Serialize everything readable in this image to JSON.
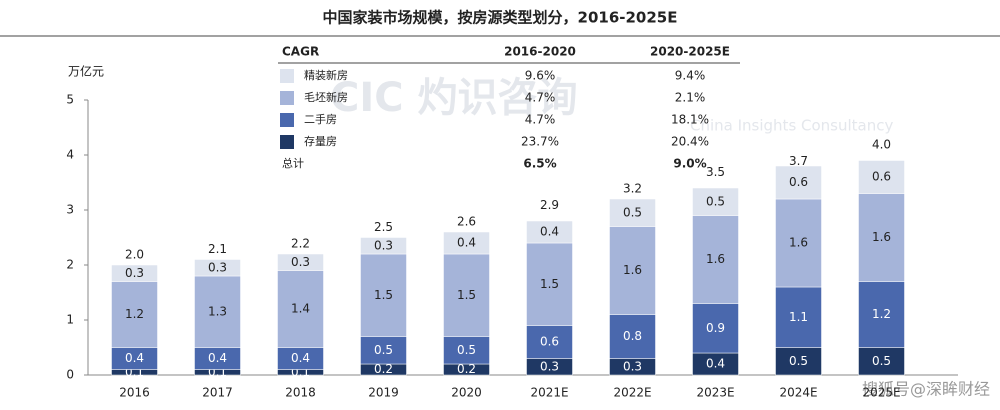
{
  "chart_data": {
    "type": "stacked_bar",
    "title": "中国家装市场规模，按房源类型划分，2016-2025E",
    "y_unit": "万亿元",
    "categories": [
      "2016",
      "2017",
      "2018",
      "2019",
      "2020",
      "2021E",
      "2022E",
      "2023E",
      "2024E",
      "2025E"
    ],
    "series": [
      {
        "name": "精装新房",
        "color": "#dde3ee",
        "values": [
          0.3,
          0.3,
          0.3,
          0.3,
          0.4,
          0.4,
          0.5,
          0.5,
          0.6,
          0.6
        ]
      },
      {
        "name": "毛坯新房",
        "color": "#a5b4d9",
        "values": [
          1.2,
          1.3,
          1.4,
          1.5,
          1.5,
          1.5,
          1.6,
          1.6,
          1.6,
          1.6
        ]
      },
      {
        "name": "二手房",
        "color": "#4a68ad",
        "values": [
          0.4,
          0.4,
          0.4,
          0.5,
          0.5,
          0.6,
          0.8,
          0.9,
          1.1,
          1.2
        ]
      },
      {
        "name": "存量房",
        "color": "#1f3864",
        "values": [
          0.1,
          0.1,
          0.1,
          0.2,
          0.2,
          0.3,
          0.3,
          0.4,
          0.5,
          0.5
        ]
      }
    ],
    "totals": {
      "values": [
        2.0,
        2.1,
        2.2,
        2.5,
        2.6,
        2.9,
        3.2,
        3.5,
        3.7,
        4.0
      ],
      "value_labels": [
        "2.0",
        "2.1",
        "2.2",
        "2.5",
        "2.6",
        "2.9",
        "3.2",
        "3.5",
        "3.7",
        "4.0"
      ]
    },
    "ylim": [
      0,
      5
    ],
    "yticks": [
      0,
      1,
      2,
      3,
      4,
      5
    ],
    "grid": false,
    "cagr_table": {
      "headers": [
        "CAGR",
        "2016-2020",
        "2020-2025E"
      ],
      "rows": [
        [
          "9.6%",
          "9.4%"
        ],
        [
          "4.7%",
          "2.1%"
        ],
        [
          "4.7%",
          "18.1%"
        ],
        [
          "23.7%",
          "20.4%"
        ]
      ],
      "total_row": [
        "总计",
        "6.5%",
        "9.0%"
      ]
    },
    "watermark": "CIC 灼识咨询",
    "watermark_sub": "China Insights Consultancy",
    "source_mark": "搜狐号@深眸财经"
  }
}
